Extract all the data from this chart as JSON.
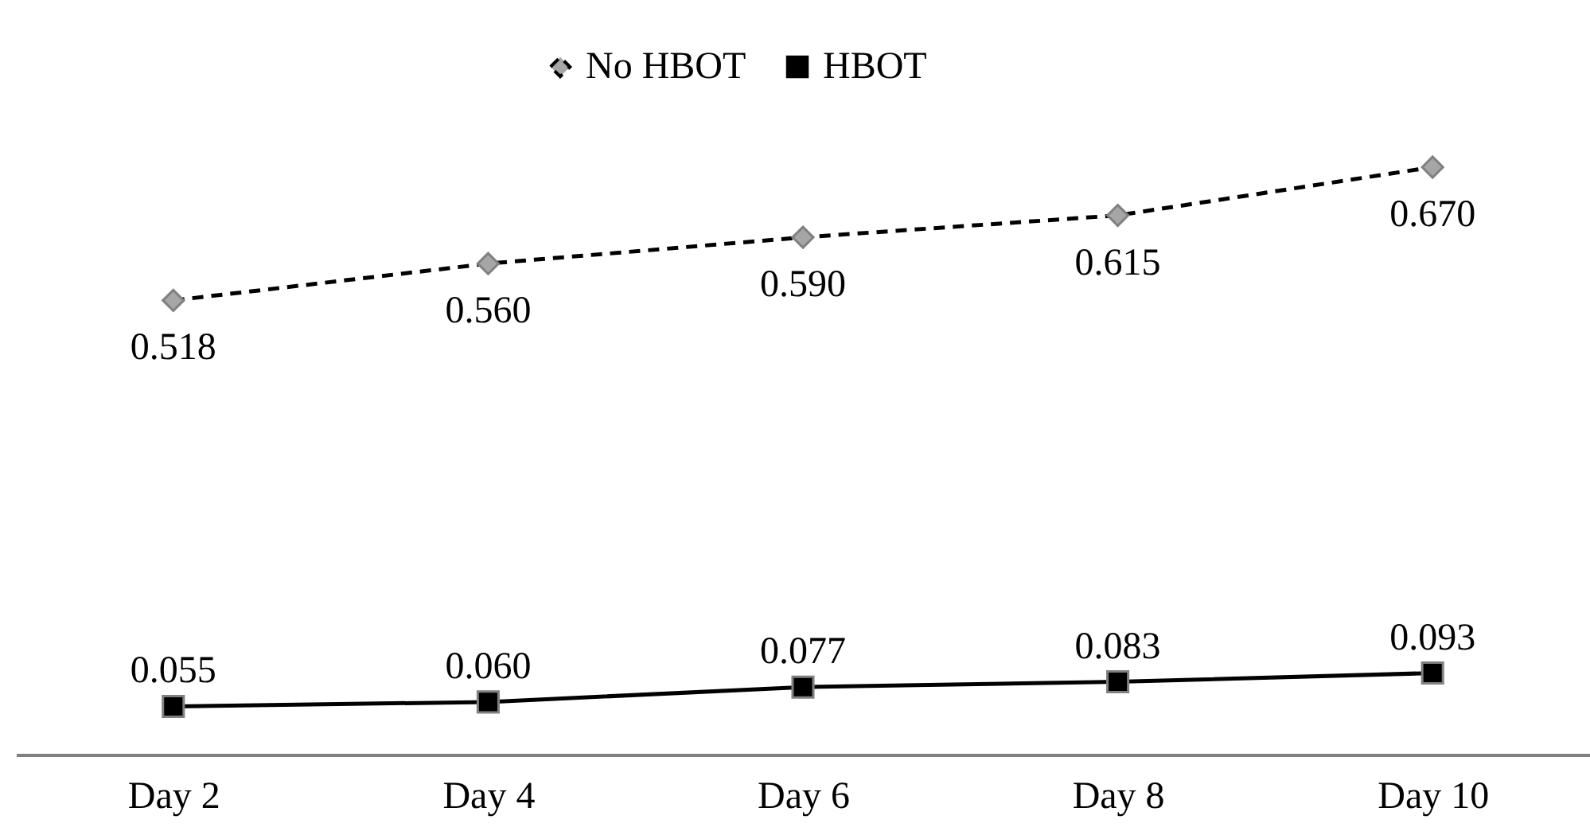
{
  "chart_data": {
    "type": "line",
    "categories": [
      "Day 2",
      "Day 4",
      "Day 6",
      "Day 8",
      "Day 10"
    ],
    "series": [
      {
        "name": "No HBOT",
        "color": "#a6a6a6",
        "marker": "diamond",
        "line_style": "dashed",
        "values": [
          0.518,
          0.56,
          0.59,
          0.615,
          0.67
        ],
        "value_labels": [
          "0.518",
          "0.560",
          "0.590",
          "0.615",
          "0.670"
        ]
      },
      {
        "name": "HBOT",
        "color": "#000000",
        "marker": "square",
        "line_style": "solid",
        "values": [
          0.055,
          0.06,
          0.077,
          0.083,
          0.093
        ],
        "value_labels": [
          "0.055",
          "0.060",
          "0.077",
          "0.083",
          "0.093"
        ]
      }
    ],
    "tick_labels": "x",
    "grid": false,
    "legend": "top"
  }
}
